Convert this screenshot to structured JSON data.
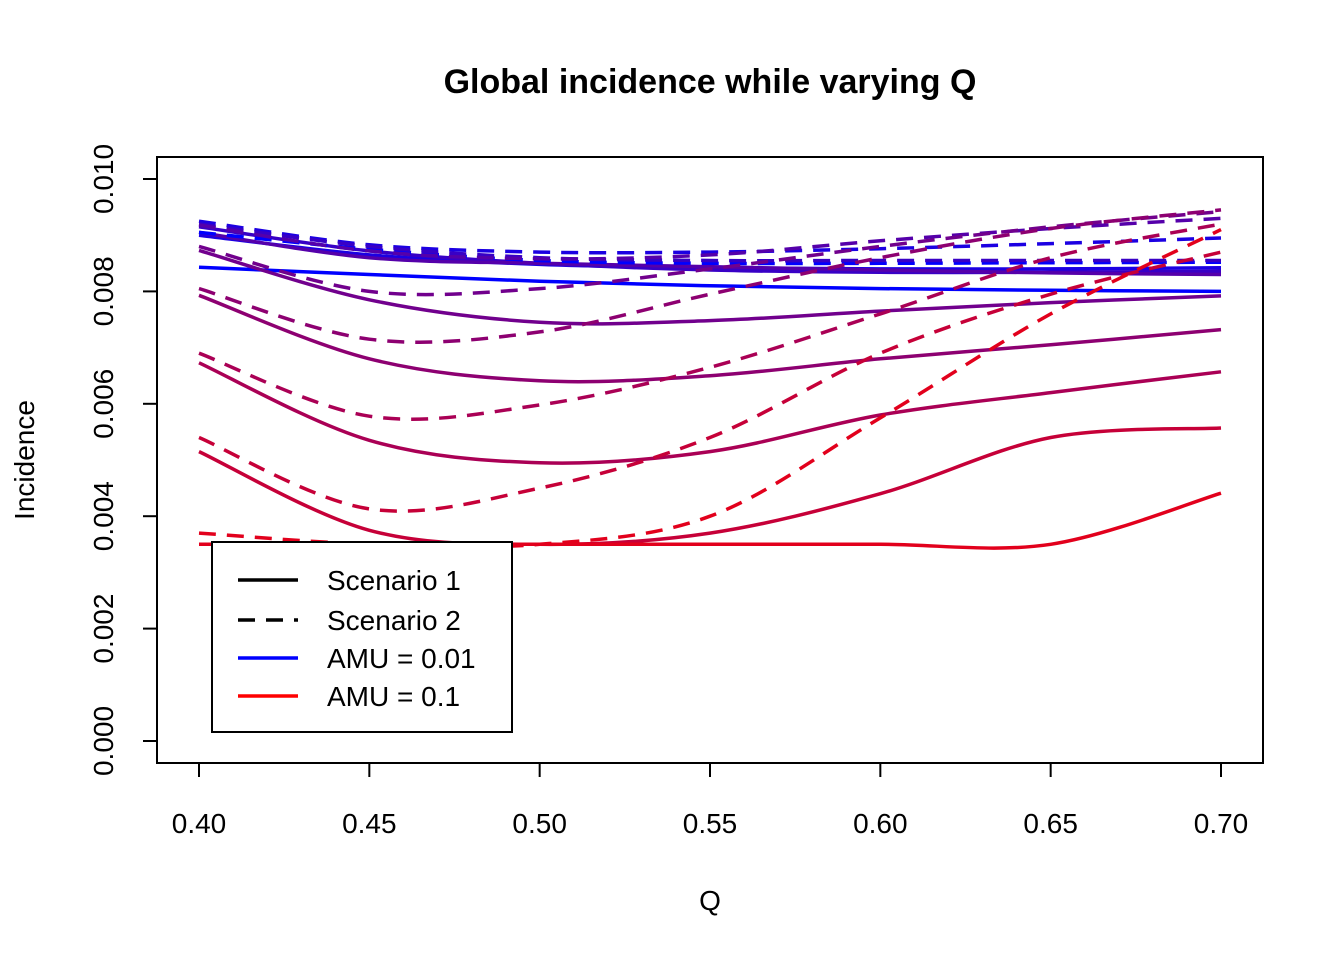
{
  "chart_data": {
    "type": "line",
    "title": "Global incidence while varying Q",
    "xlabel": "Q",
    "ylabel": "Incidence",
    "xlim": [
      0.4,
      0.7
    ],
    "ylim": [
      0.0,
      0.01
    ],
    "xticks": [
      "0.40",
      "0.45",
      "0.50",
      "0.55",
      "0.60",
      "0.65",
      "0.70"
    ],
    "yticks": [
      "0.000",
      "0.002",
      "0.004",
      "0.006",
      "0.008",
      "0.010"
    ],
    "grid": false,
    "legend_position": "bottom-left",
    "legend": [
      {
        "label": "Scenario 1",
        "color": "#000000",
        "style": "solid"
      },
      {
        "label": "Scenario 2",
        "color": "#000000",
        "style": "dashed"
      },
      {
        "label": "AMU = 0.01",
        "color": "#0000FF",
        "style": "solid"
      },
      {
        "label": "AMU = 0.1",
        "color": "#FF0000",
        "style": "solid"
      }
    ],
    "x": [
      0.4,
      0.45,
      0.5,
      0.55,
      0.6,
      0.65,
      0.7
    ],
    "series": [
      {
        "color": "#0000FF",
        "style": "solid",
        "values": [
          0.00843,
          0.0083,
          0.00818,
          0.0081,
          0.00805,
          0.00802,
          0.008
        ]
      },
      {
        "color": "#1C00E2",
        "style": "solid",
        "values": [
          0.009,
          0.00865,
          0.00848,
          0.00842,
          0.0084,
          0.0084,
          0.00842
        ]
      },
      {
        "color": "#3800C6",
        "style": "solid",
        "values": [
          0.00915,
          0.00872,
          0.0085,
          0.00838,
          0.00834,
          0.00834,
          0.00836
        ]
      },
      {
        "color": "#5500AA",
        "style": "solid",
        "values": [
          0.00905,
          0.0086,
          0.0085,
          0.00844,
          0.00838,
          0.00833,
          0.0083
        ]
      },
      {
        "color": "#71008D",
        "style": "solid",
        "values": [
          0.00873,
          0.00785,
          0.00745,
          0.00748,
          0.00765,
          0.0078,
          0.00792
        ]
      },
      {
        "color": "#8D0071",
        "style": "solid",
        "values": [
          0.00793,
          0.0068,
          0.00641,
          0.0065,
          0.0068,
          0.00705,
          0.00732
        ]
      },
      {
        "color": "#AA0055",
        "style": "solid",
        "values": [
          0.00673,
          0.00535,
          0.00495,
          0.00515,
          0.0058,
          0.0062,
          0.00657
        ]
      },
      {
        "color": "#C60038",
        "style": "solid",
        "values": [
          0.00515,
          0.00375,
          0.0035,
          0.0037,
          0.0044,
          0.0054,
          0.00557
        ]
      },
      {
        "color": "#E2001C",
        "style": "solid",
        "values": [
          0.0035,
          0.0035,
          0.0035,
          0.0035,
          0.0035,
          0.0035,
          0.00441
        ]
      },
      {
        "color": "#0000FF",
        "style": "dashed",
        "values": [
          0.00905,
          0.00875,
          0.00855,
          0.0085,
          0.0085,
          0.00851,
          0.00852
        ]
      },
      {
        "color": "#1C00E2",
        "style": "dashed",
        "values": [
          0.00925,
          0.00883,
          0.0087,
          0.0087,
          0.00876,
          0.00885,
          0.00895
        ]
      },
      {
        "color": "#3800C6",
        "style": "dashed",
        "values": [
          0.0092,
          0.0088,
          0.0086,
          0.00855,
          0.00855,
          0.00855,
          0.00855
        ]
      },
      {
        "color": "#5500AA",
        "style": "dashed",
        "values": [
          0.00918,
          0.00872,
          0.00858,
          0.00865,
          0.0089,
          0.00912,
          0.0093
        ]
      },
      {
        "color": "#71008D",
        "style": "dashed",
        "values": [
          0.0088,
          0.008,
          0.00805,
          0.0084,
          0.0088,
          0.00915,
          0.00942
        ]
      },
      {
        "color": "#8D0071",
        "style": "dashed",
        "values": [
          0.00805,
          0.00715,
          0.00728,
          0.00795,
          0.0086,
          0.00912,
          0.00945
        ]
      },
      {
        "color": "#AA0055",
        "style": "dashed",
        "values": [
          0.0069,
          0.00578,
          0.00598,
          0.00665,
          0.0076,
          0.0086,
          0.0092
        ]
      },
      {
        "color": "#C60038",
        "style": "dashed",
        "values": [
          0.0054,
          0.00413,
          0.0045,
          0.0054,
          0.0069,
          0.00795,
          0.0087
        ]
      },
      {
        "color": "#E2001C",
        "style": "dashed",
        "values": [
          0.0037,
          0.0035,
          0.0035,
          0.004,
          0.00575,
          0.0076,
          0.0091
        ]
      }
    ]
  }
}
